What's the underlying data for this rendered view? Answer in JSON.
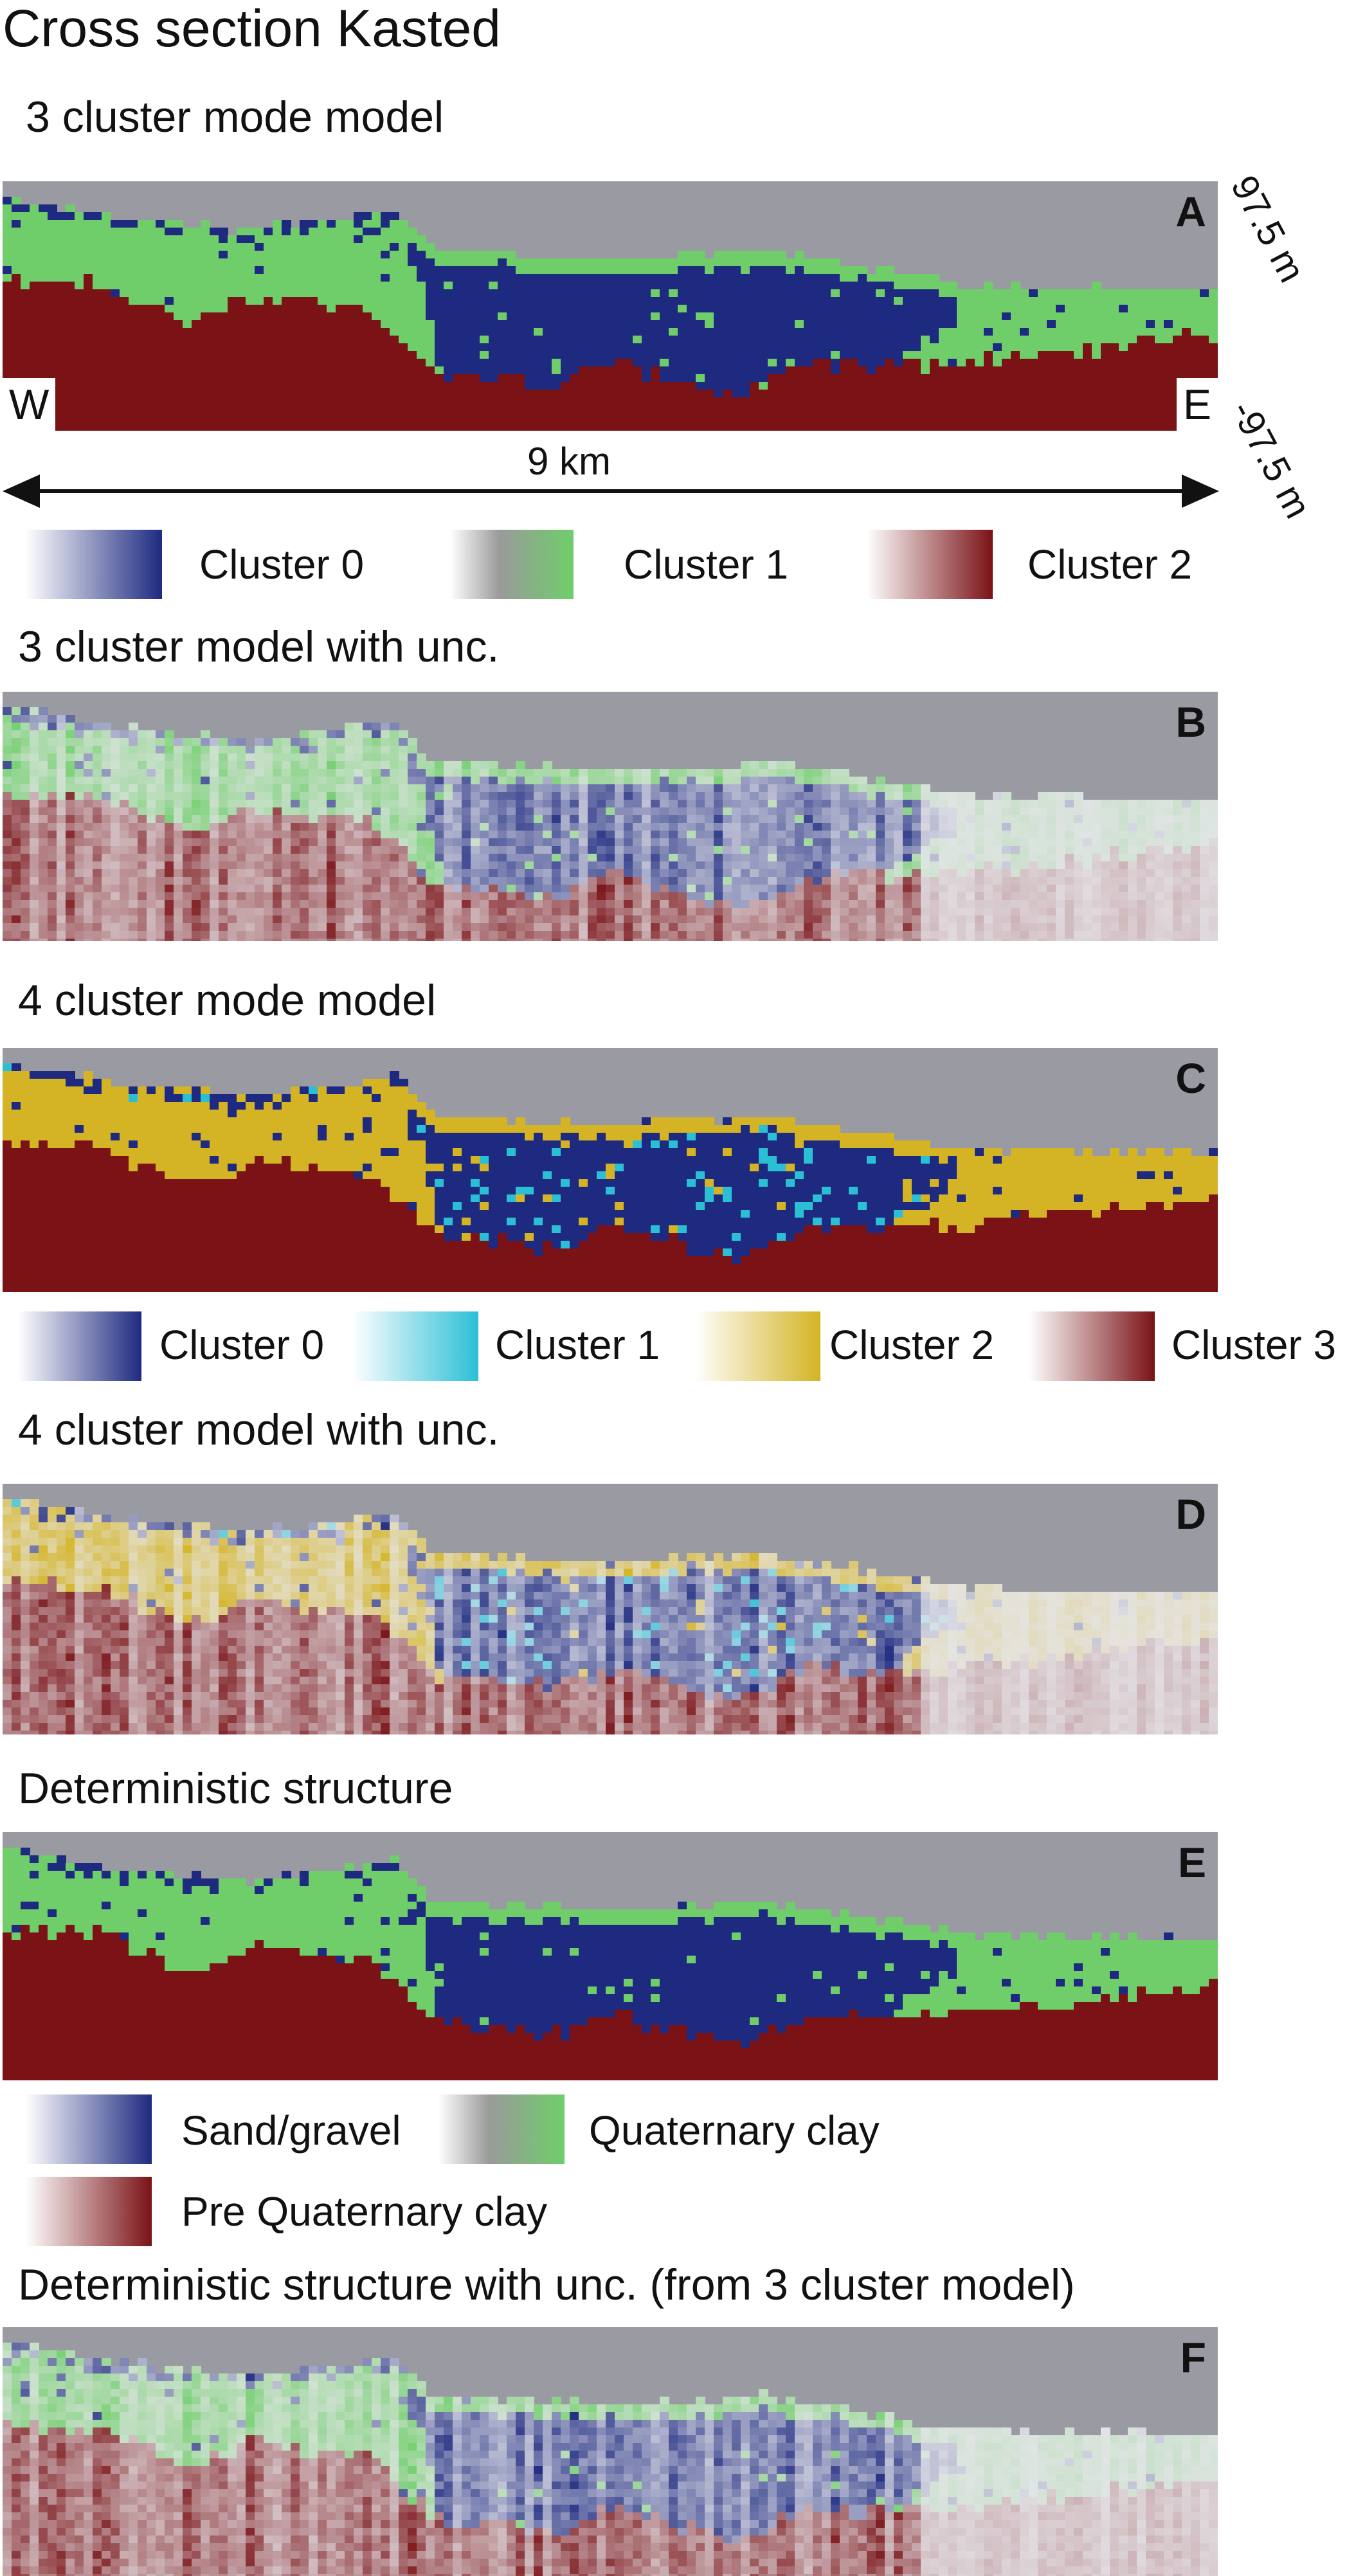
{
  "title": "Cross section Kasted",
  "colors": {
    "sky": "#9a9aa2",
    "blue": "#1e2a80",
    "green": "#6fce6a",
    "red": "#7a1216",
    "cyan": "#2bbfd6",
    "yellow": "#d4b424",
    "unc_light": "#e6e6ea"
  },
  "panels": [
    {
      "id": "A",
      "heading": "3 cluster mode model",
      "letter": "A",
      "palette": "3"
    },
    {
      "id": "B",
      "heading": "3 cluster model with unc.",
      "letter": "B",
      "palette": "3u"
    },
    {
      "id": "C",
      "heading": "4 cluster mode model",
      "letter": "C",
      "palette": "4"
    },
    {
      "id": "D",
      "heading": "4 cluster model with unc.",
      "letter": "D",
      "palette": "4u"
    },
    {
      "id": "E",
      "heading": "Deterministic structure",
      "letter": "E",
      "palette": "3"
    },
    {
      "id": "F",
      "heading": "Deterministic structure with unc. (from 3 cluster model)",
      "letter": "F",
      "palette": "3u"
    }
  ],
  "annotations": {
    "west": "W",
    "east": "E",
    "top_elevation": "97.5 m",
    "bottom_elevation": "-97.5 m",
    "distance": "9 km"
  },
  "legend_3cluster": [
    "Cluster 0",
    "Cluster 1",
    "Cluster 2"
  ],
  "legend_4cluster": [
    "Cluster 0",
    "Cluster 1",
    "Cluster 2",
    "Cluster 3"
  ],
  "legend_deterministic": [
    "Sand/gravel",
    "Quaternary clay",
    "Pre Quaternary clay"
  ]
}
